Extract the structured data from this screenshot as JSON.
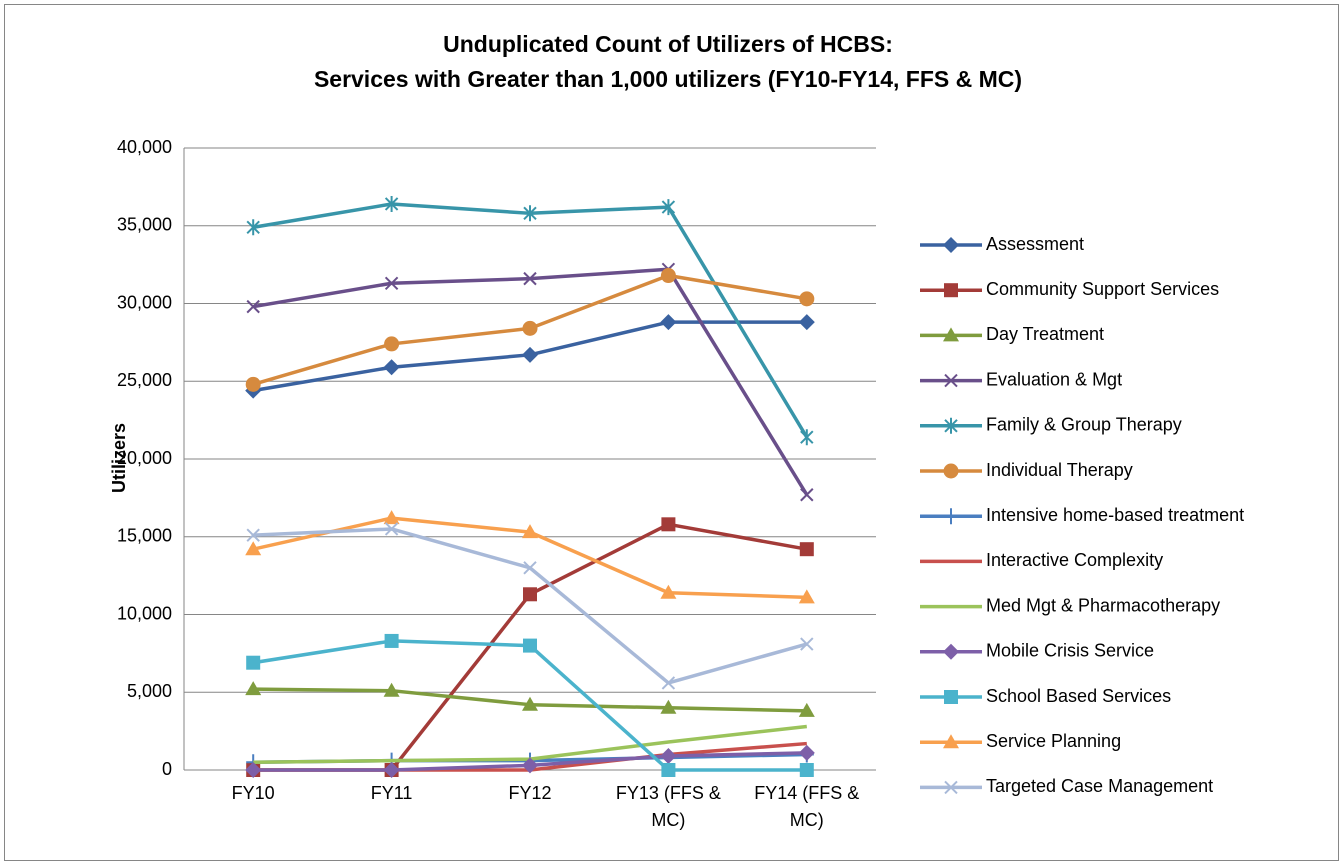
{
  "chart_data": {
    "type": "line",
    "title": [
      "Unduplicated Count of Utilizers of HCBS:",
      "Services with Greater than 1,000 utilizers (FY10-FY14, FFS & MC)"
    ],
    "y_label": "Utilizers",
    "categories": [
      "FY10",
      "FY11",
      "FY12",
      "FY13 (FFS & MC)",
      "FY14 (FFS & MC)"
    ],
    "ylim": [
      0,
      40000
    ],
    "yticks": [
      0,
      {
        "value": 5000,
        "label": "5,000"
      },
      {
        "value": 10000,
        "label": "10,000"
      },
      {
        "value": 15000,
        "label": "15,000"
      },
      {
        "value": 20000,
        "label": "20,000"
      },
      {
        "value": 25000,
        "label": "25,000"
      },
      {
        "value": 30000,
        "label": "30,000"
      },
      {
        "value": 35000,
        "label": "35,000"
      },
      {
        "value": 40000,
        "label": "40,000"
      }
    ],
    "grid": true,
    "legend": "right",
    "series": [
      {
        "name": "Assessment",
        "color": "#3a62a0",
        "marker": "diamond",
        "values": [
          24400,
          25900,
          26700,
          28800,
          28800
        ]
      },
      {
        "name": "Community Support Services",
        "color": "#a33b38",
        "marker": "square",
        "values": [
          0,
          0,
          11300,
          15800,
          14200
        ]
      },
      {
        "name": "Day Treatment",
        "color": "#7f9c3e",
        "marker": "triangle",
        "values": [
          5200,
          5100,
          4200,
          4000,
          3800
        ]
      },
      {
        "name": "Evaluation & Mgt",
        "color": "#694f8a",
        "marker": "x",
        "values": [
          29800,
          31300,
          31600,
          32200,
          17700
        ]
      },
      {
        "name": "Family & Group Therapy",
        "color": "#3895a9",
        "marker": "star",
        "values": [
          34900,
          36400,
          35800,
          36200,
          21400
        ]
      },
      {
        "name": "Individual Therapy",
        "color": "#d68a3e",
        "marker": "circle",
        "values": [
          24800,
          27400,
          28400,
          31800,
          30300
        ]
      },
      {
        "name": "Intensive home-based treatment",
        "color": "#4a7ec0",
        "marker": "plus",
        "values": [
          500,
          600,
          600,
          800,
          1000
        ]
      },
      {
        "name": "Interactive Complexity",
        "color": "#c8504d",
        "marker": "none",
        "values": [
          0,
          0,
          0,
          1000,
          1700
        ]
      },
      {
        "name": "Med Mgt & Pharmacotherapy",
        "color": "#9bc35b",
        "marker": "none",
        "values": [
          500,
          600,
          700,
          1800,
          2800
        ]
      },
      {
        "name": "Mobile Crisis Service",
        "color": "#7d5fa8",
        "marker": "diamond",
        "values": [
          0,
          0,
          300,
          900,
          1100
        ]
      },
      {
        "name": "School Based Services",
        "color": "#4bb3cc",
        "marker": "square",
        "values": [
          6900,
          8300,
          8000,
          0,
          0
        ]
      },
      {
        "name": "Service Planning",
        "color": "#f8a04e",
        "marker": "triangle",
        "values": [
          14200,
          16200,
          15300,
          11400,
          11100
        ]
      },
      {
        "name": "Targeted Case Management",
        "color": "#a8b9d8",
        "marker": "x",
        "values": [
          15100,
          15500,
          13000,
          5600,
          8100
        ]
      }
    ]
  }
}
